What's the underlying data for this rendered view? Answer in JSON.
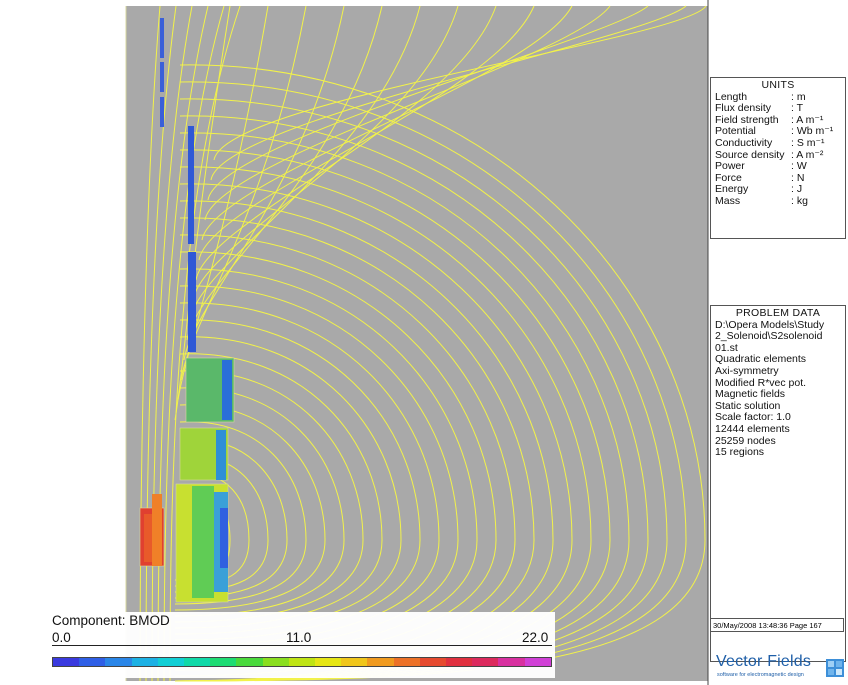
{
  "units": {
    "title": "UNITS",
    "rows": [
      {
        "k": "Length",
        "v": ": m"
      },
      {
        "k": "Flux density",
        "v": ": T"
      },
      {
        "k": "Field strength",
        "v": ": A m⁻¹"
      },
      {
        "k": "Potential",
        "v": ": Wb m⁻¹"
      },
      {
        "k": "Conductivity",
        "v": ": S m⁻¹"
      },
      {
        "k": "Source density",
        "v": ": A m⁻²"
      },
      {
        "k": "Power",
        "v": ": W"
      },
      {
        "k": "Force",
        "v": ": N"
      },
      {
        "k": "Energy",
        "v": ": J"
      },
      {
        "k": "Mass",
        "v": ": kg"
      }
    ]
  },
  "problem_data": {
    "title": "PROBLEM DATA",
    "lines": [
      "D:\\Opera Models\\Study",
      "2_Solenoid\\S2solenoid",
      "01.st",
      "Quadratic elements",
      "Axi-symmetry",
      "Modified R*vec pot.",
      "Magnetic fields",
      "Static solution",
      "Scale factor: 1.0",
      "12444 elements",
      "25259 nodes",
      "15 regions"
    ]
  },
  "footer": {
    "date": "30/May/2008 13:48:36 Page 167",
    "brand": "Vector Fields",
    "tagline": "software for electromagnetic design"
  },
  "legend": {
    "title": "Component: BMOD",
    "ticks": [
      "0.0",
      "11.0",
      "22.0"
    ],
    "colors": [
      "#3a3adf",
      "#2f5fe6",
      "#2a86e8",
      "#1cb1e4",
      "#12cfd5",
      "#10d9a8",
      "#1edc72",
      "#49d93b",
      "#8ade1f",
      "#bfe413",
      "#e6e614",
      "#f0c61a",
      "#f09a1e",
      "#ec7126",
      "#e64a2e",
      "#e0303e",
      "#dc2a5c",
      "#d830a0",
      "#d040d6"
    ]
  },
  "plot": {
    "background": "#a9a9a9",
    "contour_color": "#f2f24a"
  }
}
